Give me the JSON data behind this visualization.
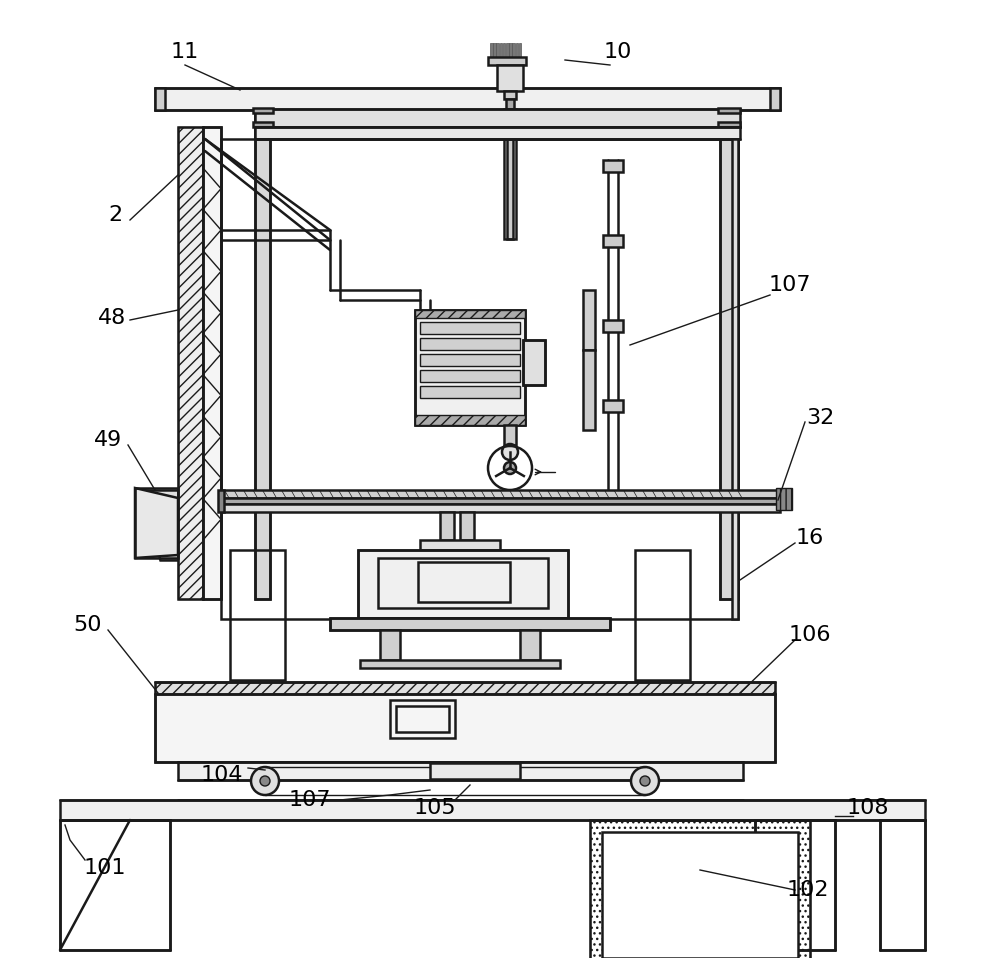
{
  "bg_color": "#ffffff",
  "line_color": "#1a1a1a",
  "lw_main": 1.8,
  "lw_thin": 1.0,
  "figsize": [
    10.0,
    9.58
  ],
  "dpi": 100,
  "label_fontsize": 16
}
